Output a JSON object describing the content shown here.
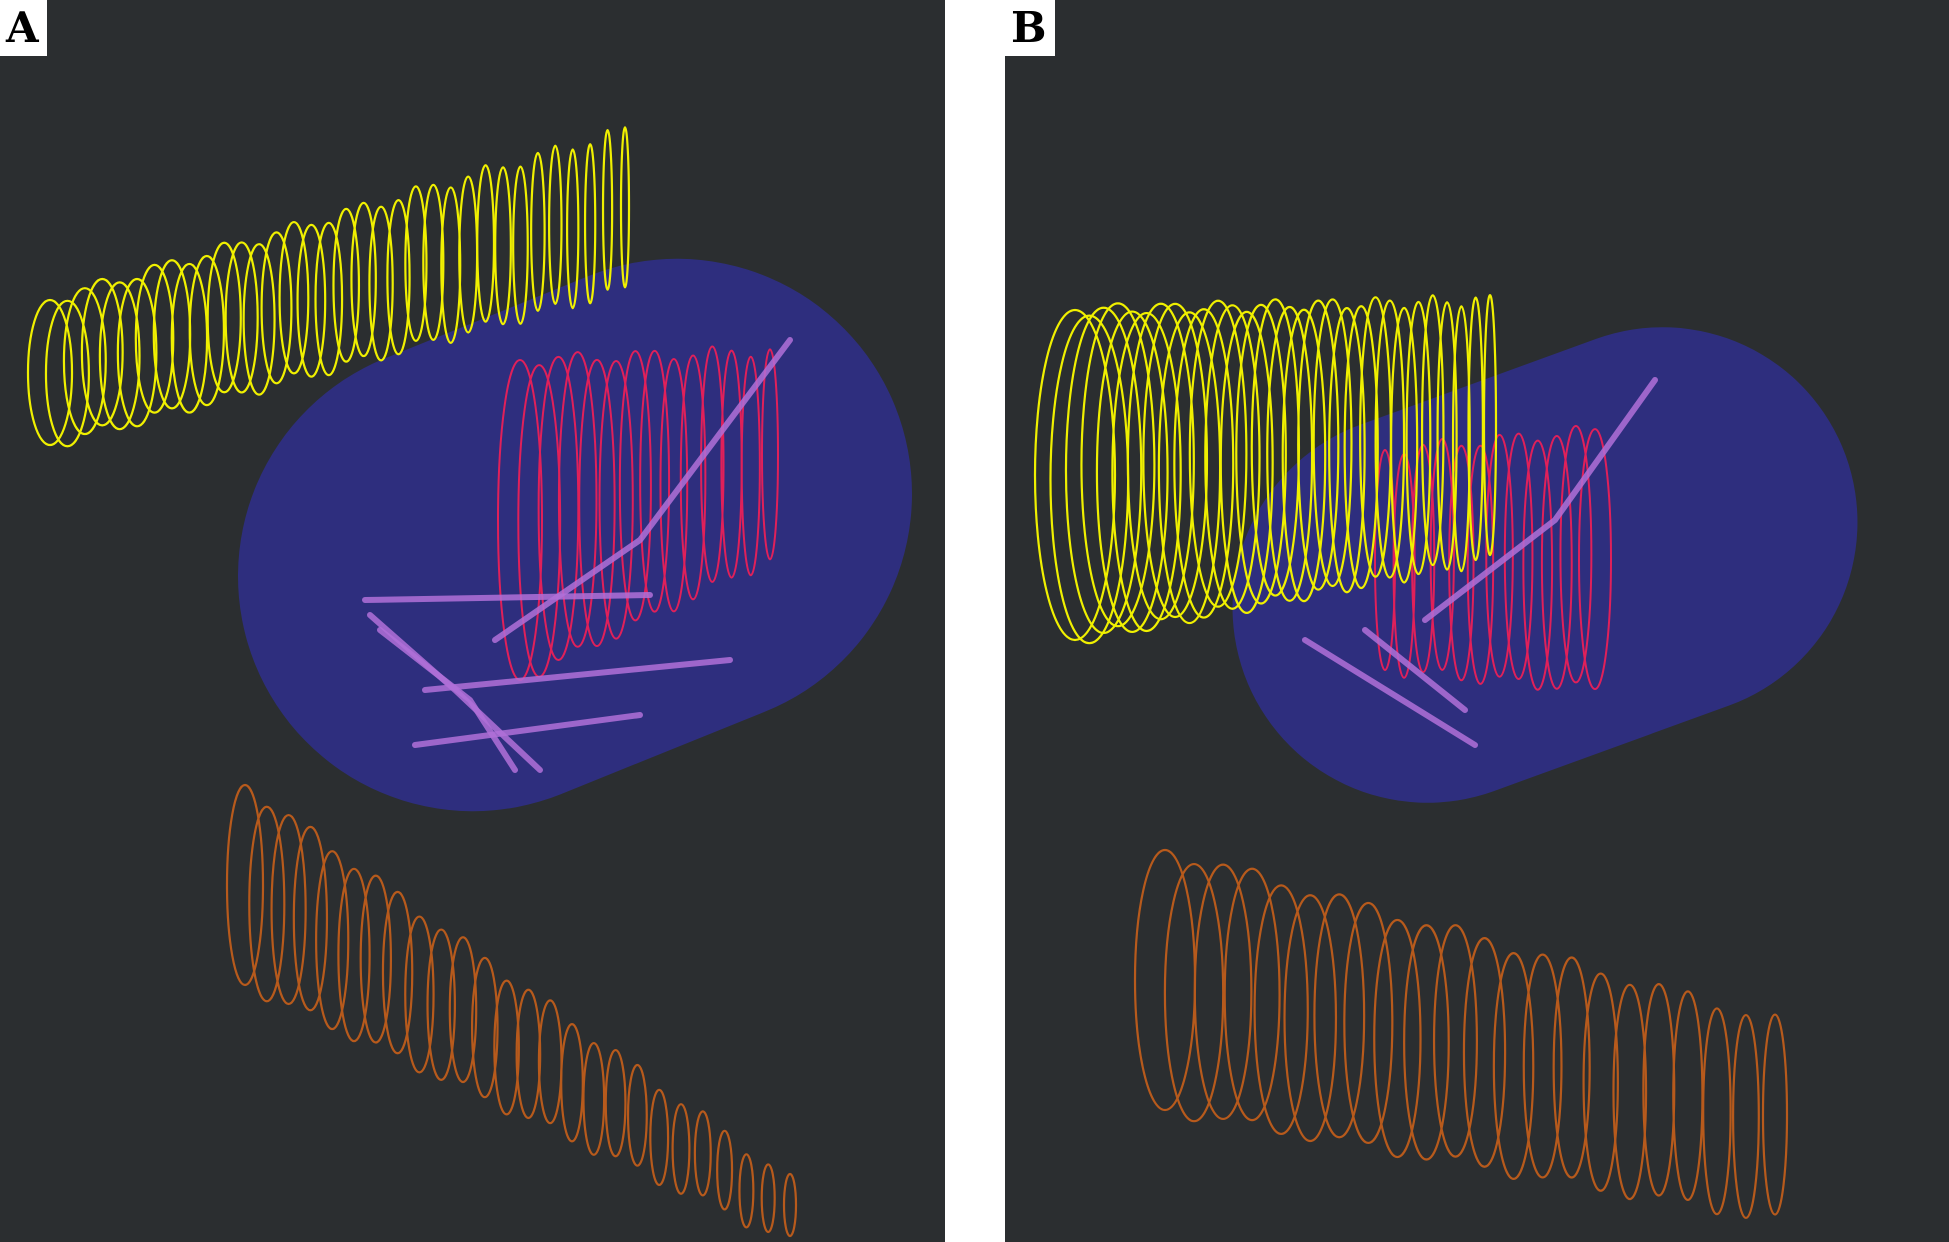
{
  "panels": [
    {
      "label": "A"
    },
    {
      "label": "B"
    }
  ],
  "colors": {
    "background": "#2b2e30",
    "ellipsoid": "#2f2f86",
    "yellow_contours": "#f0f000",
    "red_contours": "#e0205a",
    "orange_contours": "#b75a1c",
    "purple_lines": "#b070d8"
  }
}
